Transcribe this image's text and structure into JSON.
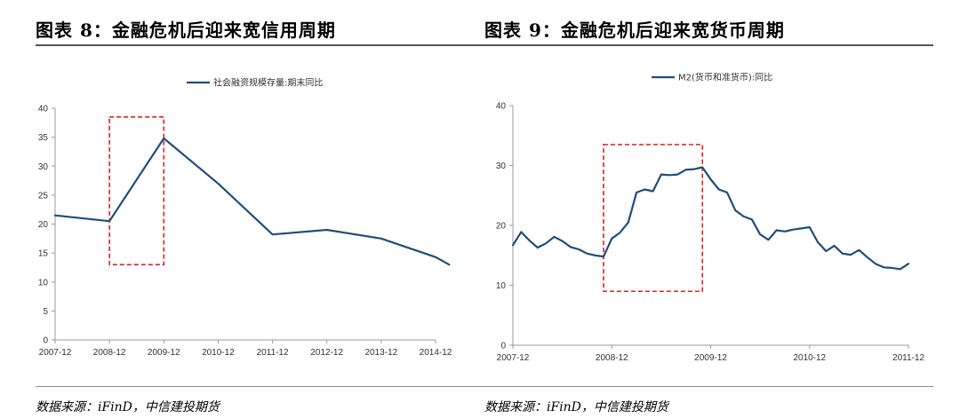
{
  "figures": [
    {
      "title": "图表 8：金融危机后迎来宽信用周期",
      "source": "数据来源：iFinD，中信建投期货"
    },
    {
      "title": "图表 9：金融危机后迎来宽货币周期",
      "source": "数据来源：iFinD，中信建投期货"
    }
  ],
  "chart_data": [
    {
      "type": "line",
      "title": "",
      "xlabel": "",
      "ylabel": "",
      "x_ticks": [
        "2007-12",
        "2008-12",
        "2009-12",
        "2010-12",
        "2011-12",
        "2012-12",
        "2013-12",
        "2014-12"
      ],
      "ylim": [
        0,
        40
      ],
      "y_ticks": [
        0,
        5,
        10,
        15,
        20,
        25,
        30,
        35,
        40
      ],
      "grid": false,
      "legend_position": "top-center",
      "line_color": "#1f4e79",
      "highlight_color": "#e02020",
      "highlight_x_range": [
        "2008-12",
        "2009-12"
      ],
      "highlight_y_range": [
        13,
        38.5
      ],
      "series": [
        {
          "name": "社会融资规模存量:期末同比",
          "x": [
            "2007-12",
            "2008-12",
            "2009-12",
            "2010-12",
            "2011-12",
            "2012-12",
            "2013-12",
            "2014-12",
            "2015-03"
          ],
          "values": [
            21.5,
            20.5,
            34.8,
            27.0,
            18.2,
            19.0,
            17.5,
            14.3,
            13.0
          ]
        }
      ]
    },
    {
      "type": "line",
      "title": "",
      "xlabel": "",
      "ylabel": "",
      "x_ticks": [
        "2007-12",
        "2008-12",
        "2009-12",
        "2010-12",
        "2011-12"
      ],
      "ylim": [
        0,
        40
      ],
      "y_ticks": [
        0,
        10,
        20,
        30,
        40
      ],
      "grid": false,
      "legend_position": "top-center",
      "line_color": "#1f4e79",
      "highlight_color": "#e02020",
      "highlight_x_range": [
        "2008-11",
        "2009-11"
      ],
      "highlight_y_range": [
        9,
        33.5
      ],
      "series": [
        {
          "name": "M2(货币和准货币):同比",
          "x": [
            "2007-12",
            "2008-01",
            "2008-02",
            "2008-03",
            "2008-04",
            "2008-05",
            "2008-06",
            "2008-07",
            "2008-08",
            "2008-09",
            "2008-10",
            "2008-11",
            "2008-12",
            "2009-01",
            "2009-02",
            "2009-03",
            "2009-04",
            "2009-05",
            "2009-06",
            "2009-07",
            "2009-08",
            "2009-09",
            "2009-10",
            "2009-11",
            "2009-12",
            "2010-01",
            "2010-02",
            "2010-03",
            "2010-04",
            "2010-05",
            "2010-06",
            "2010-07",
            "2010-08",
            "2010-09",
            "2010-10",
            "2010-11",
            "2010-12",
            "2011-01",
            "2011-02",
            "2011-03",
            "2011-04",
            "2011-05",
            "2011-06",
            "2011-07",
            "2011-08",
            "2011-09",
            "2011-10",
            "2011-11",
            "2011-12"
          ],
          "values": [
            16.7,
            18.9,
            17.5,
            16.3,
            17.0,
            18.1,
            17.4,
            16.4,
            16.0,
            15.3,
            15.0,
            14.8,
            17.8,
            18.8,
            20.5,
            25.5,
            26.0,
            25.7,
            28.5,
            28.4,
            28.5,
            29.3,
            29.4,
            29.7,
            27.7,
            26.0,
            25.5,
            22.5,
            21.5,
            21.0,
            18.5,
            17.6,
            19.2,
            19.0,
            19.3,
            19.5,
            19.7,
            17.2,
            15.7,
            16.6,
            15.3,
            15.1,
            15.9,
            14.7,
            13.6,
            13.0,
            12.9,
            12.7,
            13.6
          ]
        }
      ]
    }
  ]
}
